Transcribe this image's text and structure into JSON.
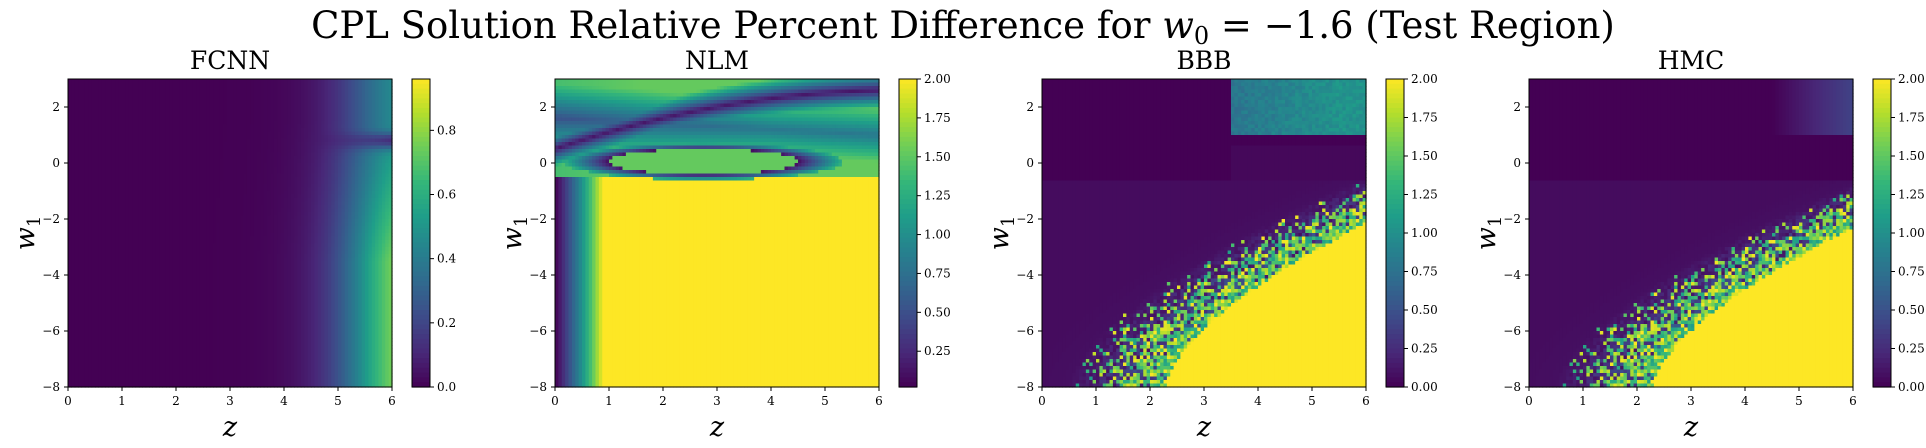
{
  "figure": {
    "title_prefix": "CPL Solution Relative Percent Difference for ",
    "title_var": "w",
    "title_sub": "0",
    "title_suffix": " = −1.6 (Test Region)"
  },
  "chart_data": [
    {
      "type": "heatmap",
      "title": "FCNN",
      "xlabel": "z",
      "ylabel": "w1",
      "xlim": [
        0,
        6
      ],
      "ylim": [
        -8,
        3
      ],
      "x_ticks": [
        0,
        1,
        2,
        3,
        4,
        5,
        6
      ],
      "y_ticks": [
        2,
        0,
        -2,
        -4,
        -6,
        -8
      ],
      "x_tick_labels": [
        "0",
        "1",
        "2",
        "3",
        "4",
        "5",
        "6"
      ],
      "y_tick_labels": [
        "2",
        "0",
        "−2",
        "−4",
        "−6",
        "−8"
      ],
      "colormap": "viridis",
      "colorbar_range": [
        0,
        0.96
      ],
      "colorbar_ticks": [
        0.0,
        0.2,
        0.4,
        0.6,
        0.8
      ],
      "colorbar_tick_labels": [
        "0.0",
        "0.2",
        "0.4",
        "0.6",
        "0.8"
      ],
      "pattern": "low (~0) everywhere for z < 4; rises toward ~0.96 at z = 6, strongest at low w1, with a dark band near w1 ≈ 0.8"
    },
    {
      "type": "heatmap",
      "title": "NLM",
      "xlabel": "z",
      "ylabel": "w1",
      "xlim": [
        0,
        6
      ],
      "ylim": [
        -8,
        3
      ],
      "x_ticks": [
        0,
        1,
        2,
        3,
        4,
        5,
        6
      ],
      "y_ticks": [
        2,
        0,
        -2,
        -4,
        -6,
        -8
      ],
      "x_tick_labels": [
        "0",
        "1",
        "2",
        "3",
        "4",
        "5",
        "6"
      ],
      "y_tick_labels": [
        "2",
        "0",
        "−2",
        "−4",
        "−6",
        "−8"
      ],
      "colormap": "viridis",
      "colorbar_range": [
        0.02,
        2.0
      ],
      "colorbar_ticks": [
        0.25,
        0.5,
        0.75,
        1.0,
        1.25,
        1.5,
        1.75,
        2.0
      ],
      "colorbar_tick_labels": [
        "0.25",
        "0.50",
        "0.75",
        "1.00",
        "1.25",
        "1.50",
        "1.75",
        "2.00"
      ],
      "pattern": "saturated (2.0) for w1 < −0.5 except near z = 0; saturated ellipse centered z ≈ 2.7, w1 ≈ 0 surrounded by a dark ring; dark curved band through z ≈ 3, w1 ≈ 2"
    },
    {
      "type": "heatmap",
      "title": "BBB",
      "xlabel": "z",
      "ylabel": "w1",
      "xlim": [
        0,
        6
      ],
      "ylim": [
        -8,
        3
      ],
      "x_ticks": [
        0,
        1,
        2,
        3,
        4,
        5,
        6
      ],
      "y_ticks": [
        2,
        0,
        -2,
        -4,
        -6,
        -8
      ],
      "x_tick_labels": [
        "0",
        "1",
        "2",
        "3",
        "4",
        "5",
        "6"
      ],
      "y_tick_labels": [
        "2",
        "0",
        "−2",
        "−4",
        "−6",
        "−8"
      ],
      "colormap": "viridis",
      "colorbar_range": [
        0.0,
        2.0
      ],
      "colorbar_ticks": [
        0.0,
        0.25,
        0.5,
        0.75,
        1.0,
        1.25,
        1.5,
        1.75,
        2.0
      ],
      "colorbar_tick_labels": [
        "0.00",
        "0.25",
        "0.50",
        "0.75",
        "1.00",
        "1.25",
        "1.50",
        "1.75",
        "2.00"
      ],
      "pattern": "near 0 in upper-left; noisy boundary curving from z ≈ 1.5 at w1 = −8 to z ≈ 6 at w1 ≈ −1; saturated (2.0) in lower-right; elevated band for 3.5 < z < 6, w1 > 1"
    },
    {
      "type": "heatmap",
      "title": "HMC",
      "xlabel": "z",
      "ylabel": "w1",
      "xlim": [
        0,
        6
      ],
      "ylim": [
        -8,
        3
      ],
      "x_ticks": [
        0,
        1,
        2,
        3,
        4,
        5,
        6
      ],
      "y_ticks": [
        2,
        0,
        -2,
        -4,
        -6,
        -8
      ],
      "x_tick_labels": [
        "0",
        "1",
        "2",
        "3",
        "4",
        "5",
        "6"
      ],
      "y_tick_labels": [
        "2",
        "0",
        "−2",
        "−4",
        "−6",
        "−8"
      ],
      "colormap": "viridis",
      "colorbar_range": [
        0.0,
        2.0
      ],
      "colorbar_ticks": [
        0.0,
        0.25,
        0.5,
        0.75,
        1.0,
        1.25,
        1.5,
        1.75,
        2.0
      ],
      "colorbar_tick_labels": [
        "0.00",
        "0.25",
        "0.50",
        "0.75",
        "1.00",
        "1.25",
        "1.50",
        "1.75",
        "2.00"
      ],
      "pattern": "near 0 in upper-left; noisy boundary curving from z ≈ 1.5 at w1 = −8 to z ≈ 6 at w1 ≈ −1.5; saturated (2.0) in lower-right; slight rise toward z = 6, w1 > 1"
    }
  ]
}
